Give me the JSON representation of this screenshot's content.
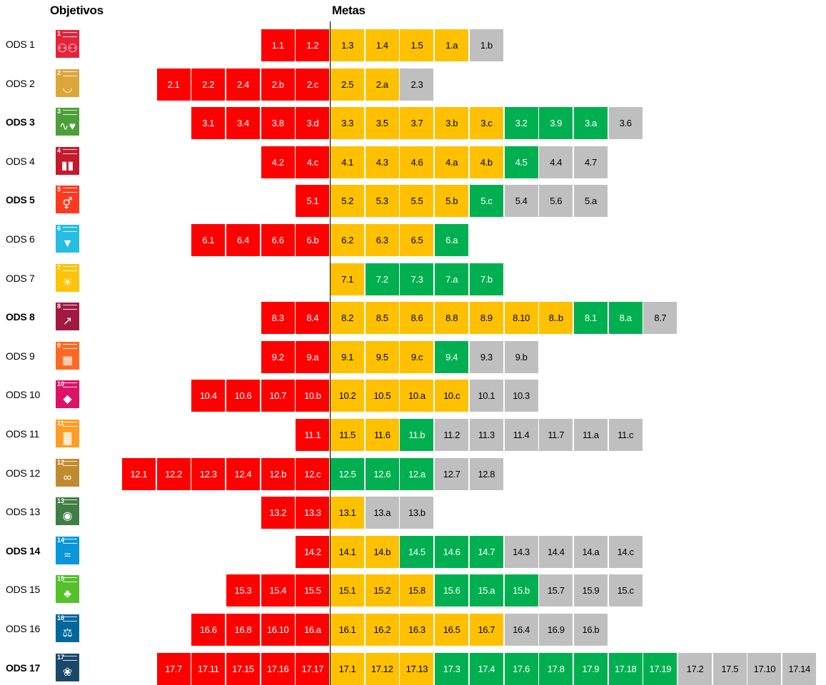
{
  "header": {
    "objectives_label": "Objetivos",
    "targets_label": "Metas"
  },
  "colors": {
    "red": "#ff0000",
    "yellow": "#ffc000",
    "green": "#00b050",
    "gray": "#bfbfbf"
  },
  "chart_data": {
    "type": "table",
    "rows": [
      {
        "label": "ODS 1",
        "icon_color": "#e5243b",
        "icon": "people-icon",
        "red": [
          "1.1",
          "1.2"
        ],
        "yellow": [
          "1.3",
          "1.4",
          "1.5",
          "1.a"
        ],
        "green": [],
        "gray": [
          "1.b"
        ]
      },
      {
        "label": "ODS 2",
        "icon_color": "#dda63a",
        "icon": "food-bowl-icon",
        "red": [
          "2.1",
          "2.2",
          "2.4",
          "2.b",
          "2.c"
        ],
        "yellow": [
          "2.5",
          "2.a"
        ],
        "green": [],
        "gray": [
          "2.3"
        ]
      },
      {
        "label": "ODS 3",
        "icon_color": "#4c9f38",
        "icon": "heartbeat-icon",
        "red": [
          "3.1",
          "3.4",
          "3.8",
          "3.d"
        ],
        "yellow": [
          "3.3",
          "3.5",
          "3.7",
          "3.b",
          "3.c"
        ],
        "green": [
          "3.2",
          "3.9",
          "3.a"
        ],
        "gray": [
          "3.6"
        ]
      },
      {
        "label": "ODS 4",
        "icon_color": "#c5192d",
        "icon": "book-icon",
        "red": [
          "4.2",
          "4.c"
        ],
        "yellow": [
          "4.1",
          "4.3",
          "4.6",
          "4.a",
          "4.b"
        ],
        "green": [
          "4.5"
        ],
        "gray": [
          "4.4",
          "4.7"
        ]
      },
      {
        "label": "ODS 5",
        "icon_color": "#ff3a21",
        "icon": "gender-icon",
        "red": [
          "5.1"
        ],
        "yellow": [
          "5.2",
          "5.3",
          "5.5",
          "5.b"
        ],
        "green": [
          "5.c"
        ],
        "gray": [
          "5.4",
          "5.6",
          "5.a"
        ]
      },
      {
        "label": "ODS 6",
        "icon_color": "#26bde2",
        "icon": "water-drop-icon",
        "red": [
          "6.1",
          "6.4",
          "6.6",
          "6.b"
        ],
        "yellow": [
          "6.2",
          "6.3",
          "6.5"
        ],
        "green": [
          "6.a"
        ],
        "gray": []
      },
      {
        "label": "ODS 7",
        "icon_color": "#fcc30b",
        "icon": "sun-icon",
        "red": [],
        "yellow": [
          "7.1"
        ],
        "green": [
          "7.2",
          "7.3",
          "7.a",
          "7.b"
        ],
        "gray": []
      },
      {
        "label": "ODS 8",
        "icon_color": "#a21942",
        "icon": "growth-chart-icon",
        "red": [
          "8.3",
          "8.4"
        ],
        "yellow": [
          "8.2",
          "8.5",
          "8.6",
          "8.8",
          "8.9",
          "8.10",
          "8..b"
        ],
        "green": [
          "8.1",
          "8.a"
        ],
        "gray": [
          "8.7"
        ]
      },
      {
        "label": "ODS 9",
        "icon_color": "#fd6925",
        "icon": "cubes-icon",
        "red": [
          "9.2",
          "9.a"
        ],
        "yellow": [
          "9.1",
          "9.5",
          "9.c"
        ],
        "green": [
          "9.4"
        ],
        "gray": [
          "9.3",
          "9.b"
        ]
      },
      {
        "label": "ODS 10",
        "icon_color": "#dd1367",
        "icon": "equality-icon",
        "red": [
          "10.4",
          "10.6",
          "10.7",
          "10.b"
        ],
        "yellow": [
          "10.2",
          "10.5",
          "10.a",
          "10.c"
        ],
        "green": [],
        "gray": [
          "10.1",
          "10.3"
        ]
      },
      {
        "label": "ODS 11",
        "icon_color": "#fd9d24",
        "icon": "city-icon",
        "red": [
          "11.1"
        ],
        "yellow": [
          "11.5",
          "11.6"
        ],
        "green": [
          "11.b"
        ],
        "gray": [
          "11.2",
          "11.3",
          "11.4",
          "11.7",
          "11.a",
          "11.c"
        ]
      },
      {
        "label": "ODS 12",
        "icon_color": "#bf8b2e",
        "icon": "infinity-icon",
        "red": [
          "12.1",
          "12.2",
          "12.3",
          "12.4",
          "12.b",
          "12.c"
        ],
        "yellow": [],
        "green": [
          "12.5",
          "12.6",
          "12.a"
        ],
        "gray": [
          "12.7",
          "12.8"
        ]
      },
      {
        "label": "ODS 13",
        "icon_color": "#3f7e44",
        "icon": "globe-eye-icon",
        "red": [
          "13.2",
          "13.3"
        ],
        "yellow": [
          "13.1"
        ],
        "green": [],
        "gray": [
          "13.a",
          "13.b"
        ]
      },
      {
        "label": "ODS 14",
        "icon_color": "#0a97d9",
        "icon": "fish-icon",
        "red": [
          "14.2"
        ],
        "yellow": [
          "14.1",
          "14.b"
        ],
        "green": [
          "14.5",
          "14.6",
          "14.7"
        ],
        "gray": [
          "14.3",
          "14.4",
          "14.a",
          "14.c"
        ]
      },
      {
        "label": "ODS 15",
        "icon_color": "#56c02b",
        "icon": "tree-icon",
        "red": [
          "15.3",
          "15.4",
          "15.5"
        ],
        "yellow": [
          "15.1",
          "15.2",
          "15.8"
        ],
        "green": [
          "15.6",
          "15.a",
          "15.b"
        ],
        "gray": [
          "15.7",
          "15.9",
          "15.c"
        ]
      },
      {
        "label": "ODS 16",
        "icon_color": "#00689d",
        "icon": "dove-icon",
        "red": [
          "16.6",
          "16.8",
          "16.10",
          "16.a"
        ],
        "yellow": [
          "16.1",
          "16.2",
          "16.3",
          "16.5",
          "16.7"
        ],
        "green": [],
        "gray": [
          "16.4",
          "16.9",
          "16.b"
        ]
      },
      {
        "label": "ODS 17",
        "icon_color": "#19486a",
        "icon": "partnership-icon",
        "red": [
          "17.7",
          "17.11",
          "17.15",
          "17.16",
          "17.17"
        ],
        "yellow": [
          "17.1",
          "17.12",
          "17.13"
        ],
        "green": [
          "17.3",
          "17.4",
          "17.6",
          "17.8",
          "17.9",
          "17.18",
          "17.19"
        ],
        "gray": [
          "17.2",
          "17.5",
          "17.10",
          "17.14"
        ]
      }
    ]
  }
}
